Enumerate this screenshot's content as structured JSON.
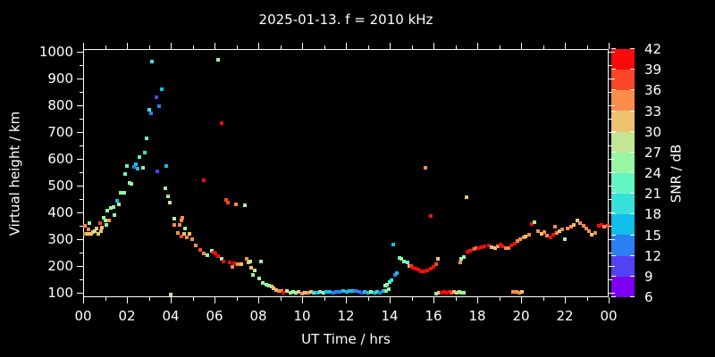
{
  "title": "2025-01-13. f = 2010 kHz",
  "chart_data": {
    "type": "scatter",
    "title": "2025-01-13. f = 2010 kHz",
    "xlabel": "UT Time / hrs",
    "ylabel": "Virtual height / km",
    "xlim": [
      0,
      24
    ],
    "ylim": [
      85,
      1010
    ],
    "grid": false,
    "background": "#000000",
    "frame_color": "#ffffff",
    "x_tick_values": [
      0,
      2,
      4,
      6,
      8,
      10,
      12,
      14,
      16,
      18,
      20,
      22,
      24
    ],
    "x_tick_labels": [
      "00",
      "02",
      "04",
      "06",
      "08",
      "10",
      "12",
      "14",
      "16",
      "18",
      "20",
      "22",
      "00"
    ],
    "x_minor_tick_values": [
      1,
      3,
      5,
      7,
      9,
      11,
      13,
      15,
      17,
      19,
      21,
      23
    ],
    "y_tick_values": [
      100,
      200,
      300,
      400,
      500,
      600,
      700,
      800,
      900,
      1000
    ],
    "y_tick_labels": [
      "100",
      "200",
      "300",
      "400",
      "500",
      "600",
      "700",
      "800",
      "900",
      "1000"
    ],
    "y_minor_tick_values": [
      150,
      250,
      350,
      450,
      550,
      650,
      750,
      850,
      950
    ],
    "colorbar": {
      "label": "SNR / dB",
      "min": 6,
      "max": 42,
      "step": 3,
      "tick_labels": [
        "6",
        "9",
        "12",
        "15",
        "18",
        "21",
        "24",
        "27",
        "30",
        "33",
        "36",
        "39",
        "42"
      ],
      "colors": [
        "#7c00f2",
        "#5342f2",
        "#2b7ff2",
        "#12bee9",
        "#36e2da",
        "#62f6c3",
        "#97f7a4",
        "#c4e593",
        "#edc372",
        "#fb8c4b",
        "#fe4629",
        "#fc0a0a"
      ]
    },
    "points_format": [
      "ut_hr",
      "virtual_height_km",
      "snr_db"
    ],
    "points": [
      [
        0.02,
        356,
        34
      ],
      [
        0.05,
        326,
        34
      ],
      [
        0.15,
        326,
        31
      ],
      [
        0.2,
        340,
        34
      ],
      [
        0.24,
        365,
        25
      ],
      [
        0.33,
        326,
        31
      ],
      [
        0.42,
        330,
        31
      ],
      [
        0.49,
        336,
        28
      ],
      [
        0.57,
        343,
        31
      ],
      [
        0.65,
        326,
        31
      ],
      [
        0.72,
        366,
        37
      ],
      [
        0.76,
        333,
        31
      ],
      [
        0.83,
        349,
        31
      ],
      [
        0.9,
        385,
        25
      ],
      [
        0.97,
        375,
        25
      ],
      [
        1.02,
        359,
        25
      ],
      [
        1.08,
        412,
        25
      ],
      [
        1.15,
        376,
        34
      ],
      [
        1.24,
        420,
        25
      ],
      [
        1.33,
        426,
        25
      ],
      [
        1.4,
        395,
        25
      ],
      [
        1.53,
        449,
        16
      ],
      [
        1.59,
        434,
        28
      ],
      [
        1.66,
        476,
        25
      ],
      [
        1.82,
        476,
        25
      ],
      [
        1.86,
        547,
        22
      ],
      [
        1.95,
        576,
        22
      ],
      [
        2.08,
        515,
        25
      ],
      [
        2.18,
        510,
        25
      ],
      [
        2.29,
        575,
        13
      ],
      [
        2.37,
        585,
        16
      ],
      [
        2.44,
        568,
        16
      ],
      [
        2.53,
        611,
        22
      ],
      [
        2.68,
        572,
        25
      ],
      [
        2.78,
        628,
        19
      ],
      [
        2.86,
        681,
        22
      ],
      [
        2.98,
        788,
        19
      ],
      [
        3.06,
        775,
        13
      ],
      [
        3.12,
        967,
        19
      ],
      [
        3.31,
        834,
        10
      ],
      [
        3.35,
        556,
        10
      ],
      [
        3.43,
        801,
        13
      ],
      [
        3.55,
        864,
        16
      ],
      [
        3.7,
        495,
        25
      ],
      [
        3.76,
        578,
        16
      ],
      [
        3.84,
        465,
        25
      ],
      [
        3.9,
        440,
        28
      ],
      [
        3.96,
        97,
        28
      ],
      [
        4.13,
        381,
        28
      ],
      [
        4.13,
        357,
        34
      ],
      [
        4.29,
        329,
        34
      ],
      [
        4.37,
        357,
        34
      ],
      [
        4.45,
        376,
        34
      ],
      [
        4.45,
        313,
        37
      ],
      [
        4.5,
        386,
        34
      ],
      [
        4.57,
        326,
        31
      ],
      [
        4.62,
        343,
        25
      ],
      [
        4.7,
        310,
        34
      ],
      [
        4.82,
        323,
        31
      ],
      [
        4.94,
        303,
        34
      ],
      [
        5.1,
        282,
        34
      ],
      [
        5.29,
        266,
        37
      ],
      [
        5.47,
        525,
        40
      ],
      [
        5.47,
        252,
        34
      ],
      [
        5.65,
        246,
        25
      ],
      [
        5.82,
        260,
        25
      ],
      [
        5.92,
        256,
        40
      ],
      [
        6.02,
        252,
        40
      ],
      [
        6.12,
        973,
        25
      ],
      [
        6.14,
        242,
        40
      ],
      [
        6.27,
        231,
        25
      ],
      [
        6.29,
        738,
        40
      ],
      [
        6.35,
        220,
        40
      ],
      [
        6.49,
        452,
        37
      ],
      [
        6.57,
        442,
        37
      ],
      [
        6.67,
        219,
        40
      ],
      [
        6.76,
        203,
        34
      ],
      [
        6.86,
        215,
        40
      ],
      [
        6.94,
        435,
        34
      ],
      [
        7.02,
        210,
        34
      ],
      [
        7.2,
        210,
        31
      ],
      [
        7.35,
        432,
        25
      ],
      [
        7.43,
        230,
        34
      ],
      [
        7.5,
        219,
        31
      ],
      [
        7.59,
        223,
        28
      ],
      [
        7.65,
        198,
        31
      ],
      [
        7.71,
        173,
        25
      ],
      [
        7.78,
        187,
        28
      ],
      [
        7.99,
        157,
        25
      ],
      [
        8.08,
        221,
        25
      ],
      [
        8.15,
        140,
        25
      ],
      [
        8.33,
        135,
        25
      ],
      [
        8.45,
        133,
        25
      ],
      [
        8.57,
        127,
        31
      ],
      [
        8.66,
        121,
        31
      ],
      [
        8.78,
        115,
        31
      ],
      [
        8.9,
        112,
        34
      ],
      [
        9.02,
        111,
        34
      ],
      [
        9.1,
        106,
        40
      ],
      [
        9.27,
        110,
        28
      ],
      [
        9.43,
        106,
        25
      ],
      [
        9.55,
        108,
        25
      ],
      [
        9.67,
        105,
        25
      ],
      [
        9.8,
        107,
        31
      ],
      [
        9.96,
        103,
        34
      ],
      [
        10.08,
        106,
        31
      ],
      [
        10.24,
        104,
        34
      ],
      [
        10.35,
        107,
        31
      ],
      [
        10.49,
        106,
        19
      ],
      [
        10.65,
        105,
        16
      ],
      [
        10.78,
        107,
        22
      ],
      [
        10.94,
        105,
        25
      ],
      [
        11.07,
        107,
        16
      ],
      [
        11.22,
        109,
        16
      ],
      [
        11.39,
        106,
        13
      ],
      [
        11.53,
        108,
        13
      ],
      [
        11.69,
        108,
        13
      ],
      [
        11.84,
        110,
        16
      ],
      [
        11.98,
        109,
        16
      ],
      [
        12.12,
        110,
        16
      ],
      [
        12.25,
        110,
        16
      ],
      [
        12.39,
        111,
        13
      ],
      [
        12.56,
        108,
        13
      ],
      [
        12.69,
        106,
        10
      ],
      [
        12.82,
        108,
        16
      ],
      [
        12.96,
        106,
        16
      ],
      [
        13.11,
        108,
        25
      ],
      [
        13.25,
        105,
        16
      ],
      [
        13.4,
        107,
        19
      ],
      [
        13.52,
        106,
        13
      ],
      [
        13.67,
        110,
        16
      ],
      [
        13.8,
        113,
        22
      ],
      [
        13.9,
        119,
        25
      ],
      [
        13.76,
        130,
        25
      ],
      [
        13.84,
        136,
        25
      ],
      [
        13.97,
        144,
        22
      ],
      [
        14.03,
        152,
        19
      ],
      [
        14.12,
        286,
        16
      ],
      [
        14.2,
        172,
        13
      ],
      [
        14.29,
        179,
        16
      ],
      [
        14.41,
        236,
        22
      ],
      [
        14.51,
        230,
        25
      ],
      [
        14.62,
        220,
        25
      ],
      [
        14.78,
        219,
        22
      ],
      [
        14.85,
        206,
        31
      ],
      [
        14.93,
        206,
        37
      ],
      [
        15.02,
        199,
        40
      ],
      [
        15.14,
        194,
        40
      ],
      [
        15.27,
        191,
        40
      ],
      [
        15.39,
        186,
        40
      ],
      [
        15.55,
        186,
        40
      ],
      [
        15.69,
        189,
        40
      ],
      [
        15.82,
        196,
        40
      ],
      [
        15.97,
        202,
        40
      ],
      [
        16.1,
        211,
        37
      ],
      [
        16.18,
        231,
        31
      ],
      [
        15.59,
        572,
        34
      ],
      [
        15.84,
        392,
        40
      ],
      [
        17.47,
        462,
        31
      ],
      [
        16.1,
        101,
        25
      ],
      [
        16.22,
        104,
        31
      ],
      [
        16.31,
        106,
        40
      ],
      [
        16.44,
        107,
        40
      ],
      [
        16.55,
        106,
        40
      ],
      [
        16.69,
        107,
        40
      ],
      [
        16.77,
        105,
        37
      ],
      [
        16.9,
        107,
        31
      ],
      [
        17.02,
        105,
        31
      ],
      [
        17.14,
        107,
        28
      ],
      [
        17.22,
        104,
        25
      ],
      [
        17.33,
        106,
        25
      ],
      [
        17.19,
        217,
        34
      ],
      [
        17.22,
        232,
        25
      ],
      [
        17.35,
        238,
        25
      ],
      [
        17.52,
        258,
        40
      ],
      [
        17.65,
        262,
        40
      ],
      [
        17.78,
        267,
        37
      ],
      [
        17.9,
        270,
        34
      ],
      [
        18.02,
        271,
        40
      ],
      [
        18.16,
        274,
        40
      ],
      [
        18.3,
        277,
        40
      ],
      [
        18.47,
        281,
        40
      ],
      [
        18.62,
        275,
        31
      ],
      [
        18.76,
        272,
        31
      ],
      [
        18.9,
        278,
        34
      ],
      [
        19.04,
        283,
        40
      ],
      [
        19.12,
        277,
        40
      ],
      [
        19.25,
        272,
        34
      ],
      [
        19.39,
        270,
        34
      ],
      [
        19.52,
        280,
        40
      ],
      [
        19.66,
        288,
        40
      ],
      [
        19.8,
        297,
        34
      ],
      [
        19.93,
        303,
        34
      ],
      [
        20.07,
        310,
        34
      ],
      [
        20.18,
        316,
        31
      ],
      [
        20.32,
        322,
        34
      ],
      [
        20.45,
        362,
        40
      ],
      [
        20.57,
        367,
        25
      ],
      [
        20.75,
        335,
        34
      ],
      [
        20.88,
        326,
        31
      ],
      [
        21.02,
        331,
        34
      ],
      [
        21.16,
        318,
        34
      ],
      [
        21.31,
        311,
        40
      ],
      [
        21.43,
        320,
        40
      ],
      [
        21.49,
        351,
        34
      ],
      [
        21.59,
        329,
        34
      ],
      [
        21.71,
        334,
        31
      ],
      [
        21.84,
        340,
        34
      ],
      [
        21.97,
        305,
        25
      ],
      [
        22.1,
        343,
        34
      ],
      [
        22.25,
        351,
        34
      ],
      [
        22.38,
        358,
        31
      ],
      [
        22.52,
        374,
        31
      ],
      [
        22.66,
        363,
        34
      ],
      [
        22.8,
        354,
        34
      ],
      [
        22.93,
        345,
        34
      ],
      [
        23.08,
        336,
        34
      ],
      [
        23.2,
        321,
        31
      ],
      [
        23.34,
        329,
        34
      ],
      [
        23.5,
        356,
        40
      ],
      [
        23.62,
        357,
        40
      ],
      [
        23.76,
        352,
        34
      ],
      [
        23.9,
        355,
        37
      ],
      [
        19.59,
        109,
        34
      ],
      [
        19.75,
        107,
        34
      ],
      [
        19.86,
        106,
        34
      ],
      [
        19.98,
        109,
        31
      ]
    ]
  }
}
